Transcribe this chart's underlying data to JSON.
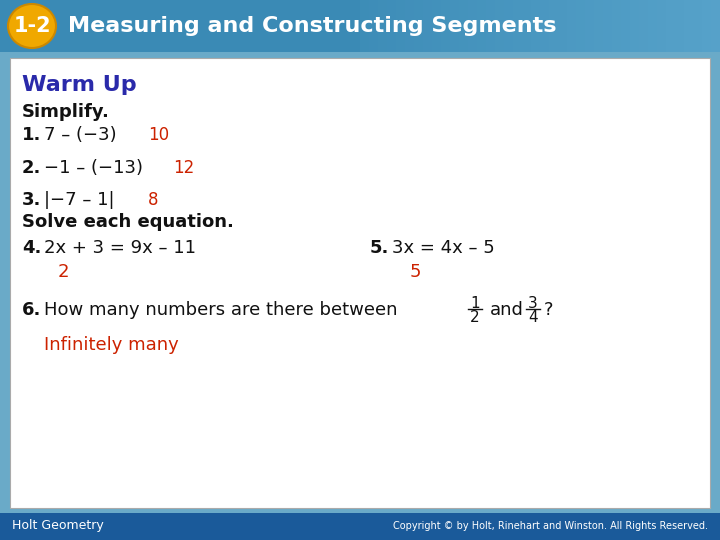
{
  "title_number": "1-2",
  "title_text": "Measuring and Constructing Segments",
  "header_bg_color": "#3a8ab5",
  "header_number_bg": "#f0a800",
  "warm_up_color": "#2a2aaa",
  "black": "#111111",
  "red": "#cc2200",
  "white": "#ffffff",
  "footer_bg": "#1a5a9a",
  "slide_bg": "#6aaac8",
  "footer_text_left": "Holt Geometry",
  "footer_text_right": "Copyright © by Holt, Rinehart and Winston. All Rights Reserved."
}
